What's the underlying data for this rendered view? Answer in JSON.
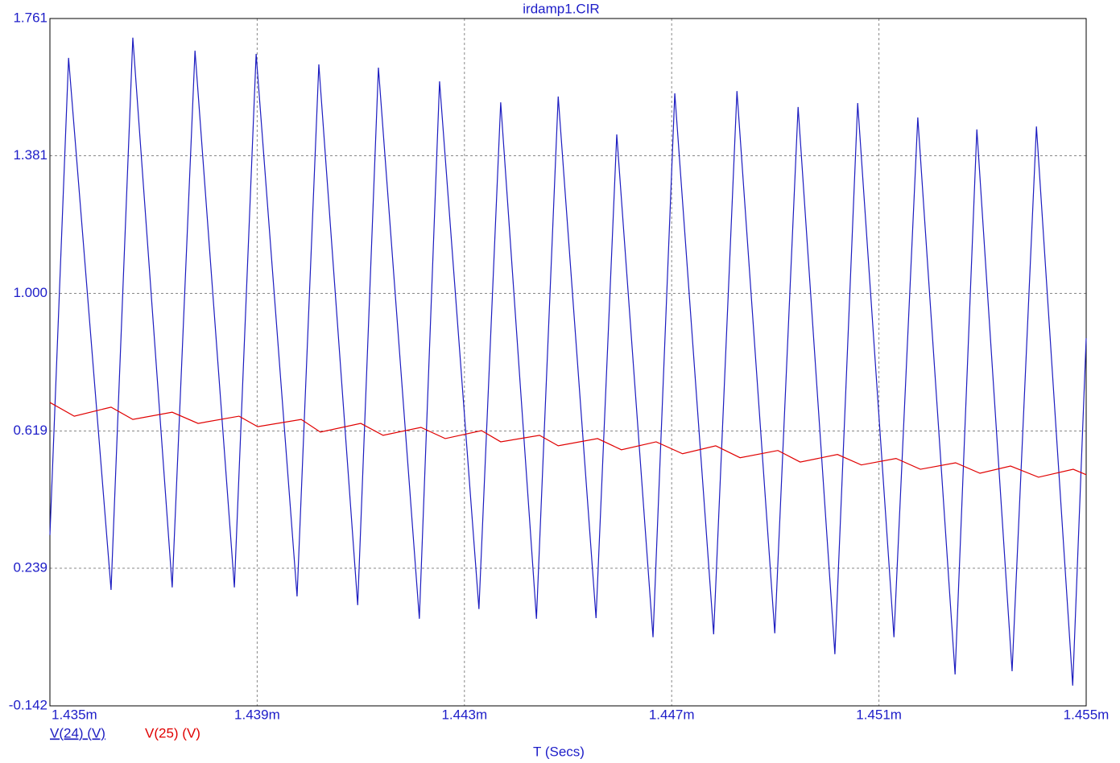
{
  "chart_data": {
    "type": "line",
    "title": "irdamp1.CIR",
    "xlabel": "T (Secs)",
    "xlim": [
      0.001435,
      0.001455
    ],
    "xticks": [
      {
        "value": 0.001435,
        "label": "1.435m"
      },
      {
        "value": 0.001439,
        "label": "1.439m"
      },
      {
        "value": 0.001443,
        "label": "1.443m"
      },
      {
        "value": 0.001447,
        "label": "1.447m"
      },
      {
        "value": 0.001451,
        "label": "1.451m"
      },
      {
        "value": 0.001455,
        "label": "1.455m"
      }
    ],
    "ylim": [
      -0.142,
      1.761
    ],
    "yticks": [
      -0.142,
      0.239,
      0.619,
      {
        "value": 1,
        "label": "1.000"
      },
      1.381,
      1.761
    ],
    "grid": true,
    "series": [
      {
        "name": "V(24) (V)",
        "color": "#1c1cc0",
        "x": [
          0.001435,
          0.00143536,
          0.00143618,
          0.0014366,
          0.00143736,
          0.0014378,
          0.00143856,
          0.00143898,
          0.00143977,
          0.00144019,
          0.00144094,
          0.00144134,
          0.00144213,
          0.00144252,
          0.00144328,
          0.0014437,
          0.00144439,
          0.00144481,
          0.00144554,
          0.00144594,
          0.00144664,
          0.00144706,
          0.00144781,
          0.00144826,
          0.00144899,
          0.00144944,
          0.00145015,
          0.00145059,
          0.00145129,
          0.00145175,
          0.00145247,
          0.00145289,
          0.00145357,
          0.00145404,
          0.00145474,
          0.001455
        ],
        "values": [
          0.331,
          1.652,
          0.179,
          1.708,
          0.186,
          1.672,
          0.186,
          1.663,
          0.161,
          1.634,
          0.137,
          1.625,
          0.099,
          1.587,
          0.126,
          1.529,
          0.099,
          1.545,
          0.101,
          1.44,
          0.048,
          1.554,
          0.056,
          1.56,
          0.059,
          1.516,
          0.001,
          1.527,
          0.048,
          1.487,
          -0.055,
          1.454,
          -0.046,
          1.462,
          -0.086,
          0.876
        ]
      },
      {
        "name": "V(25) (V)",
        "color": "#e00000",
        "x": [
          0.001435,
          0.00143547,
          0.00143618,
          0.0014366,
          0.00143736,
          0.00143786,
          0.00143865,
          0.00143901,
          0.00143985,
          0.00144022,
          0.001441,
          0.00144143,
          0.00144216,
          0.00144263,
          0.00144333,
          0.0014437,
          0.00144445,
          0.00144481,
          0.00144557,
          0.00144603,
          0.0014467,
          0.00144721,
          0.00144785,
          0.00144832,
          0.00144905,
          0.00144948,
          0.0014502,
          0.00145066,
          0.00145133,
          0.0014518,
          0.00145248,
          0.00145295,
          0.00145354,
          0.00145408,
          0.00145475,
          0.001455
        ],
        "values": [
          0.698,
          0.66,
          0.685,
          0.651,
          0.671,
          0.64,
          0.66,
          0.631,
          0.651,
          0.616,
          0.64,
          0.607,
          0.629,
          0.598,
          0.62,
          0.589,
          0.607,
          0.578,
          0.598,
          0.567,
          0.589,
          0.556,
          0.578,
          0.545,
          0.565,
          0.533,
          0.554,
          0.525,
          0.543,
          0.513,
          0.531,
          0.502,
          0.522,
          0.491,
          0.513,
          0.498
        ]
      }
    ]
  }
}
